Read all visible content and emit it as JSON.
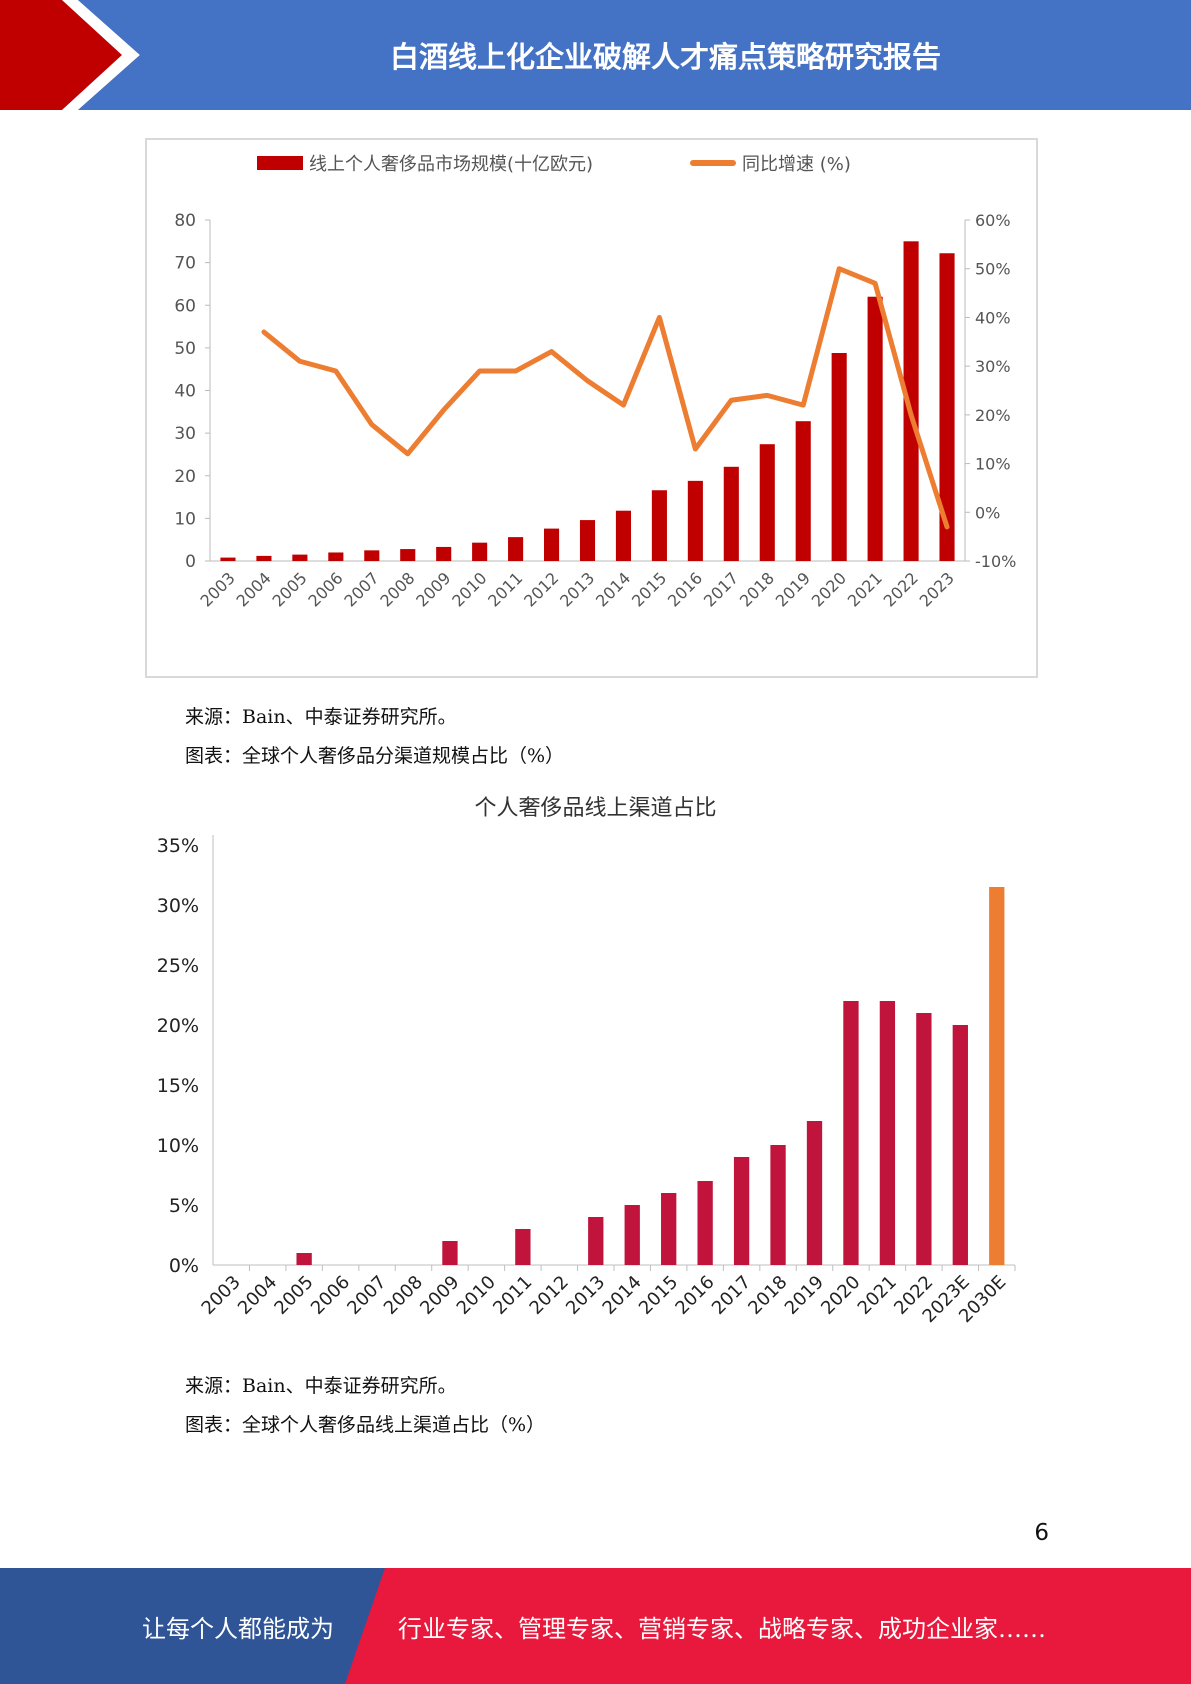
{
  "header": {
    "title": "白酒线上化企业破解人才痛点策略研究报告"
  },
  "colors": {
    "header_blue": "#4472c4",
    "header_red": "#c00000",
    "bar_red": "#c00000",
    "line_orange": "#ed7d31",
    "bar_crimson": "#c0143c",
    "bar_orange": "#ed7d31",
    "footer_blue": "#2f5597",
    "footer_red": "#e8193c"
  },
  "chart_data": [
    {
      "type": "bar",
      "legend": [
        "线上个人奢侈品市场规模(十亿欧元)",
        "同比增速 (%)"
      ],
      "legend_position": "top",
      "categories": [
        "2003",
        "2004",
        "2005",
        "2006",
        "2007",
        "2008",
        "2009",
        "2010",
        "2011",
        "2012",
        "2013",
        "2014",
        "2015",
        "2016",
        "2017",
        "2018",
        "2019",
        "2020",
        "2021",
        "2022",
        "2023"
      ],
      "series": [
        {
          "name": "线上个人奢侈品市场规模(十亿欧元)",
          "type": "bar",
          "axis": "left",
          "values": [
            0.8,
            1.2,
            1.5,
            2.0,
            2.5,
            2.8,
            3.3,
            4.3,
            5.6,
            7.6,
            9.6,
            11.8,
            16.6,
            18.8,
            22.1,
            27.4,
            32.8,
            48.8,
            62.0,
            75.0,
            72.2
          ]
        },
        {
          "name": "同比增速 (%)",
          "type": "line",
          "axis": "right",
          "values": [
            null,
            37,
            31,
            29,
            18,
            12,
            21,
            29,
            29,
            33,
            27,
            22,
            40,
            13,
            23,
            24,
            22,
            50,
            47,
            20,
            -3
          ]
        }
      ],
      "ylim_left": [
        0,
        80
      ],
      "yticks_left": [
        "0",
        "10",
        "20",
        "30",
        "40",
        "50",
        "60",
        "70",
        "80"
      ],
      "ylim_right": [
        -10,
        60
      ],
      "yticks_right": [
        "-10%",
        "0%",
        "10%",
        "20%",
        "30%",
        "40%",
        "50%",
        "60%"
      ]
    },
    {
      "type": "bar",
      "title": "个人奢侈品线上渠道占比",
      "categories": [
        "2003",
        "2004",
        "2005",
        "2006",
        "2007",
        "2008",
        "2009",
        "2010",
        "2011",
        "2012",
        "2013",
        "2014",
        "2015",
        "2016",
        "2017",
        "2018",
        "2019",
        "2020",
        "2021",
        "2022",
        "2023E",
        "2030E"
      ],
      "values": [
        0,
        0,
        1,
        0,
        0,
        0,
        2,
        0,
        3,
        0,
        4,
        5,
        6,
        7,
        9,
        10,
        12,
        22,
        22,
        21,
        20,
        31.5
      ],
      "highlight_last": true,
      "ylim": [
        0,
        35
      ],
      "yticks": [
        "0%",
        "5%",
        "10%",
        "15%",
        "20%",
        "25%",
        "30%",
        "35%"
      ]
    }
  ],
  "captions": {
    "source1": "来源：Bain、中泰证券研究所。",
    "figure1": "图表：全球个人奢侈品分渠道规模占比（%）",
    "source2": "来源：Bain、中泰证券研究所。",
    "figure2": "图表：全球个人奢侈品线上渠道占比（%）"
  },
  "page_number": "6",
  "footer": {
    "left_text": "让每个人都能成为",
    "right_text": "行业专家、管理专家、营销专家、战略专家、成功企业家……"
  }
}
